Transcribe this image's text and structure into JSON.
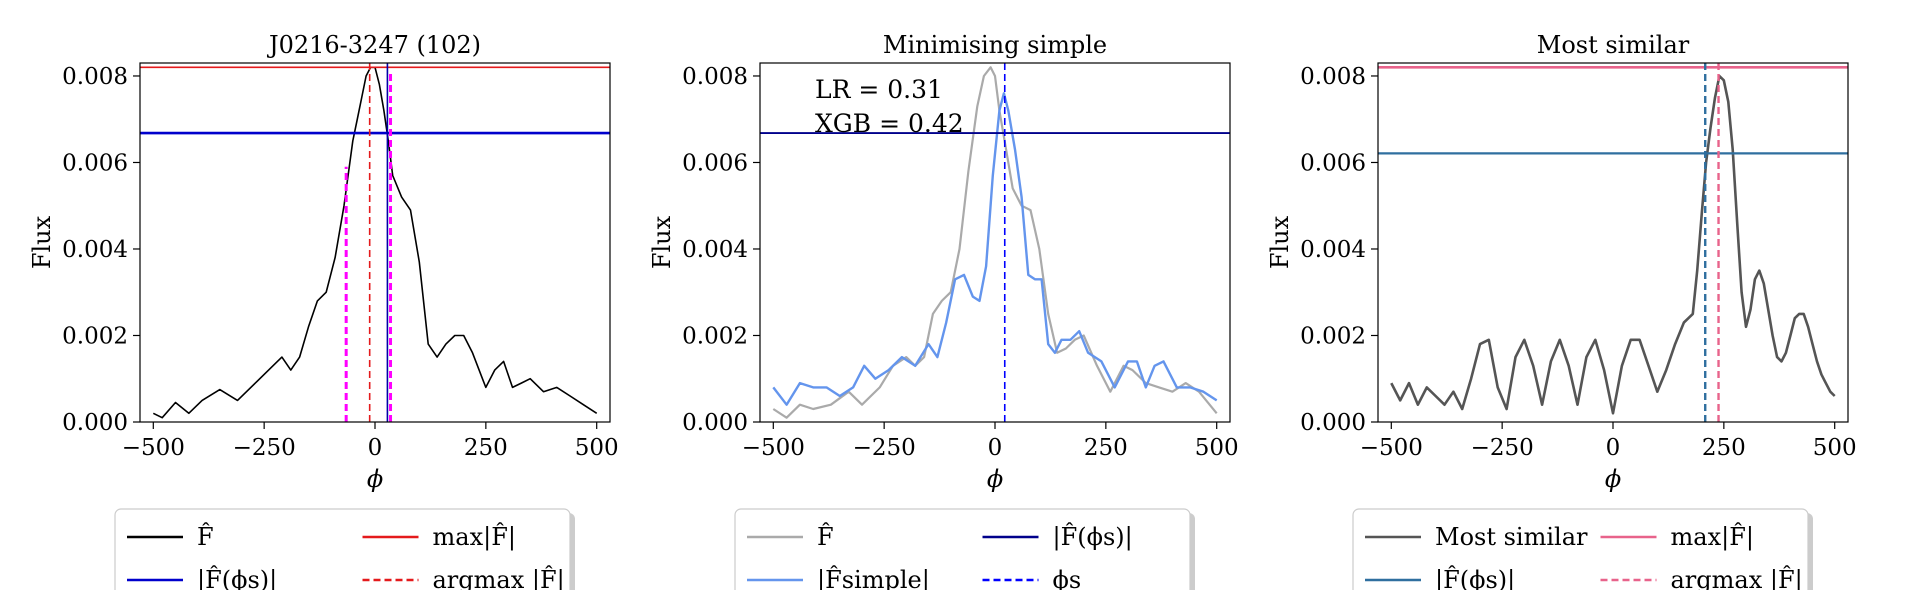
{
  "figure": {
    "panels": [
      {
        "title": "J0216-3247 (102)",
        "xlabel": "ϕ",
        "ylabel": "Flux",
        "annotations": [],
        "legend": {
          "placement": "below",
          "entries": [
            {
              "label": "F̂",
              "style": "solid",
              "color": "#000000"
            },
            {
              "label": "max|F̂|",
              "style": "solid",
              "color": "#e41a1c"
            },
            {
              "label": "|F̂(ϕs)|",
              "style": "solid",
              "color": "#0000cc"
            },
            {
              "label": "argmax |F̂|",
              "style": "dashed",
              "color": "#e41a1c"
            }
          ]
        }
      },
      {
        "title": "Minimising simple",
        "xlabel": "ϕ",
        "ylabel": "Flux",
        "annotations": [
          "LR = 0.31",
          "XGB = 0.42"
        ],
        "legend": {
          "placement": "below",
          "entries": [
            {
              "label": "F̂",
              "style": "solid",
              "color": "#aaaaaa"
            },
            {
              "label": "|F̂(ϕs)|",
              "style": "solid",
              "color": "#00008b"
            },
            {
              "label": "|F̂simple|",
              "style": "solid",
              "color": "#6495ed"
            },
            {
              "label": "ϕs",
              "style": "dashed",
              "color": "#0000ff"
            }
          ]
        }
      },
      {
        "title": "Most similar",
        "xlabel": "ϕ",
        "ylabel": "Flux",
        "annotations": [],
        "legend": {
          "placement": "below",
          "entries": [
            {
              "label": "Most similar",
              "style": "solid",
              "color": "#555555"
            },
            {
              "label": "max|F̂|",
              "style": "solid",
              "color": "#e8638b"
            },
            {
              "label": "|F̂(ϕs)|",
              "style": "solid",
              "color": "#2f6f9f"
            },
            {
              "label": "argmax |F̂|",
              "style": "dashed",
              "color": "#e8638b"
            }
          ]
        }
      }
    ]
  },
  "chart_data": [
    {
      "type": "line",
      "title": "J0216-3247 (102)",
      "xlabel": "ϕ",
      "ylabel": "Flux",
      "xlim": [
        -530,
        530
      ],
      "ylim": [
        0,
        0.0083
      ],
      "xticks": [
        -500,
        -250,
        0,
        250,
        500
      ],
      "xtick_labels": [
        "−500",
        "−250",
        "0",
        "250",
        "500"
      ],
      "yticks": [
        0,
        0.002,
        0.004,
        0.006,
        0.008
      ],
      "ytick_labels": [
        "0.000",
        "0.002",
        "0.004",
        "0.006",
        "0.008"
      ],
      "grid": false,
      "series": [
        {
          "name": "F̂",
          "color": "#000000",
          "width": 1.6,
          "x": [
            -500,
            -480,
            -450,
            -420,
            -390,
            -350,
            -310,
            -270,
            -240,
            -210,
            -190,
            -170,
            -150,
            -130,
            -110,
            -90,
            -70,
            -50,
            -40,
            -30,
            -20,
            -10,
            0,
            10,
            20,
            30,
            40,
            60,
            80,
            100,
            120,
            140,
            160,
            180,
            200,
            220,
            250,
            270,
            290,
            310,
            330,
            350,
            380,
            410,
            440,
            470,
            500
          ],
          "y": [
            0.0002,
            0.0001,
            0.00045,
            0.0002,
            0.0005,
            0.00075,
            0.0005,
            0.0009,
            0.0012,
            0.0015,
            0.0012,
            0.0015,
            0.0022,
            0.0028,
            0.003,
            0.0038,
            0.005,
            0.0065,
            0.007,
            0.0075,
            0.008,
            0.0082,
            0.0082,
            0.0078,
            0.0072,
            0.0065,
            0.0057,
            0.0052,
            0.0049,
            0.0037,
            0.0018,
            0.0015,
            0.0018,
            0.002,
            0.002,
            0.0016,
            0.0008,
            0.0012,
            0.0014,
            0.0008,
            0.0009,
            0.001,
            0.0007,
            0.0008,
            0.0006,
            0.0004,
            0.0002
          ]
        }
      ],
      "hlines": [
        {
          "y": 0.0082,
          "color": "#e41a1c",
          "style": "solid",
          "width": 1.6
        },
        {
          "y": 0.00668,
          "color": "#0000cc",
          "style": "solid",
          "width": 2.6
        }
      ],
      "vlines": [
        {
          "x": -12,
          "y0": 0,
          "y1": 0.0083,
          "color": "#e41a1c",
          "style": "dashed",
          "width": 1.6
        },
        {
          "x": 28,
          "y0": 0,
          "y1": 0.0083,
          "color": "#0000aa",
          "style": "solid",
          "width": 1.6
        },
        {
          "x": -65,
          "y0": 0,
          "y1": 0.0059,
          "color": "#ff00ff",
          "style": "dashed",
          "width": 3
        },
        {
          "x": 35,
          "y0": 0,
          "y1": 0.0081,
          "color": "#ff00ff",
          "style": "dashed",
          "width": 3
        }
      ]
    },
    {
      "type": "line",
      "title": "Minimising simple",
      "xlabel": "ϕ",
      "ylabel": "Flux",
      "xlim": [
        -530,
        530
      ],
      "ylim": [
        0,
        0.0083
      ],
      "xticks": [
        -500,
        -250,
        0,
        250,
        500
      ],
      "xtick_labels": [
        "−500",
        "−250",
        "0",
        "250",
        "500"
      ],
      "yticks": [
        0,
        0.002,
        0.004,
        0.006,
        0.008
      ],
      "ytick_labels": [
        "0.000",
        "0.002",
        "0.004",
        "0.006",
        "0.008"
      ],
      "grid": false,
      "series": [
        {
          "name": "F̂",
          "color": "#aaaaaa",
          "width": 2.2,
          "x": [
            -500,
            -470,
            -440,
            -410,
            -370,
            -330,
            -300,
            -260,
            -230,
            -200,
            -180,
            -160,
            -140,
            -120,
            -100,
            -80,
            -60,
            -40,
            -25,
            -10,
            0,
            10,
            25,
            40,
            60,
            80,
            100,
            120,
            140,
            160,
            180,
            200,
            230,
            260,
            290,
            310,
            340,
            370,
            400,
            430,
            460,
            500
          ],
          "y": [
            0.0003,
            0.0001,
            0.0004,
            0.0003,
            0.0004,
            0.0007,
            0.0004,
            0.0008,
            0.0013,
            0.0015,
            0.0013,
            0.0015,
            0.0025,
            0.0028,
            0.003,
            0.004,
            0.0058,
            0.0073,
            0.008,
            0.0082,
            0.008,
            0.0072,
            0.0063,
            0.0054,
            0.005,
            0.0049,
            0.004,
            0.0025,
            0.0016,
            0.0017,
            0.0019,
            0.002,
            0.0013,
            0.0007,
            0.0013,
            0.0012,
            0.0009,
            0.0008,
            0.0007,
            0.0009,
            0.0007,
            0.0002
          ]
        },
        {
          "name": "|F̂simple|",
          "color": "#6495ed",
          "width": 2.4,
          "x": [
            -500,
            -470,
            -440,
            -410,
            -380,
            -350,
            -320,
            -295,
            -270,
            -240,
            -210,
            -180,
            -150,
            -130,
            -110,
            -90,
            -70,
            -50,
            -35,
            -20,
            -5,
            10,
            20,
            30,
            45,
            60,
            75,
            90,
            105,
            120,
            135,
            150,
            170,
            190,
            210,
            240,
            270,
            300,
            320,
            340,
            360,
            380,
            410,
            440,
            470,
            500
          ],
          "y": [
            0.0008,
            0.0004,
            0.0009,
            0.0008,
            0.0008,
            0.0006,
            0.0008,
            0.0013,
            0.001,
            0.0012,
            0.0015,
            0.0013,
            0.0018,
            0.0015,
            0.0023,
            0.0033,
            0.0034,
            0.0029,
            0.0028,
            0.0036,
            0.0057,
            0.0072,
            0.0076,
            0.0072,
            0.0063,
            0.0052,
            0.0034,
            0.0033,
            0.0033,
            0.0018,
            0.0016,
            0.0019,
            0.0019,
            0.0021,
            0.0016,
            0.0014,
            0.0008,
            0.0014,
            0.0014,
            0.0008,
            0.0013,
            0.0014,
            0.0008,
            0.0008,
            0.0007,
            0.0005
          ]
        }
      ],
      "hlines": [
        {
          "y": 0.00668,
          "color": "#00008b",
          "style": "solid",
          "width": 1.8
        }
      ],
      "vlines": [
        {
          "x": 22,
          "y0": 0,
          "y1": 0.0083,
          "color": "#0000ff",
          "style": "dashed",
          "width": 1.6
        }
      ]
    },
    {
      "type": "line",
      "title": "Most similar",
      "xlabel": "ϕ",
      "ylabel": "Flux",
      "xlim": [
        -530,
        530
      ],
      "ylim": [
        0,
        0.0083
      ],
      "xticks": [
        -500,
        -250,
        0,
        250,
        500
      ],
      "xtick_labels": [
        "−500",
        "−250",
        "0",
        "250",
        "500"
      ],
      "yticks": [
        0,
        0.002,
        0.004,
        0.006,
        0.008
      ],
      "ytick_labels": [
        "0.000",
        "0.002",
        "0.004",
        "0.006",
        "0.008"
      ],
      "grid": false,
      "series": [
        {
          "name": "Most similar",
          "color": "#555555",
          "width": 2.6,
          "x": [
            -500,
            -480,
            -460,
            -440,
            -420,
            -400,
            -380,
            -360,
            -340,
            -320,
            -300,
            -280,
            -260,
            -240,
            -220,
            -200,
            -180,
            -160,
            -140,
            -120,
            -100,
            -80,
            -60,
            -40,
            -20,
            0,
            20,
            40,
            60,
            80,
            100,
            120,
            140,
            160,
            170,
            180,
            190,
            200,
            210,
            220,
            230,
            240,
            250,
            260,
            270,
            280,
            290,
            300,
            310,
            320,
            330,
            340,
            350,
            360,
            370,
            380,
            390,
            400,
            410,
            420,
            430,
            440,
            450,
            460,
            470,
            480,
            490,
            500
          ],
          "y": [
            0.0009,
            0.0005,
            0.0009,
            0.0004,
            0.0008,
            0.0006,
            0.0004,
            0.0007,
            0.0003,
            0.001,
            0.0018,
            0.0019,
            0.0008,
            0.0003,
            0.0015,
            0.0019,
            0.0013,
            0.0004,
            0.0014,
            0.0019,
            0.0013,
            0.0004,
            0.0015,
            0.0019,
            0.0012,
            0.0002,
            0.0013,
            0.0019,
            0.0019,
            0.0013,
            0.0007,
            0.0012,
            0.0018,
            0.0023,
            0.0024,
            0.0025,
            0.0035,
            0.0048,
            0.006,
            0.0068,
            0.0075,
            0.008,
            0.0079,
            0.0074,
            0.0063,
            0.0046,
            0.003,
            0.0022,
            0.0026,
            0.0033,
            0.0035,
            0.0032,
            0.0026,
            0.002,
            0.0015,
            0.0014,
            0.0016,
            0.002,
            0.0024,
            0.0025,
            0.0025,
            0.0022,
            0.0018,
            0.0014,
            0.0011,
            0.0009,
            0.0007,
            0.0006
          ]
        }
      ],
      "hlines": [
        {
          "y": 0.0082,
          "color": "#e8638b",
          "style": "solid",
          "width": 2.6
        },
        {
          "y": 0.00621,
          "color": "#2f6f9f",
          "style": "solid",
          "width": 2.2
        }
      ],
      "vlines": [
        {
          "x": 208,
          "y0": 0,
          "y1": 0.0083,
          "color": "#2f6f9f",
          "style": "dashed",
          "width": 2.4
        },
        {
          "x": 238,
          "y0": 0,
          "y1": 0.0083,
          "color": "#e8638b",
          "style": "dashed",
          "width": 2.4
        }
      ]
    }
  ]
}
